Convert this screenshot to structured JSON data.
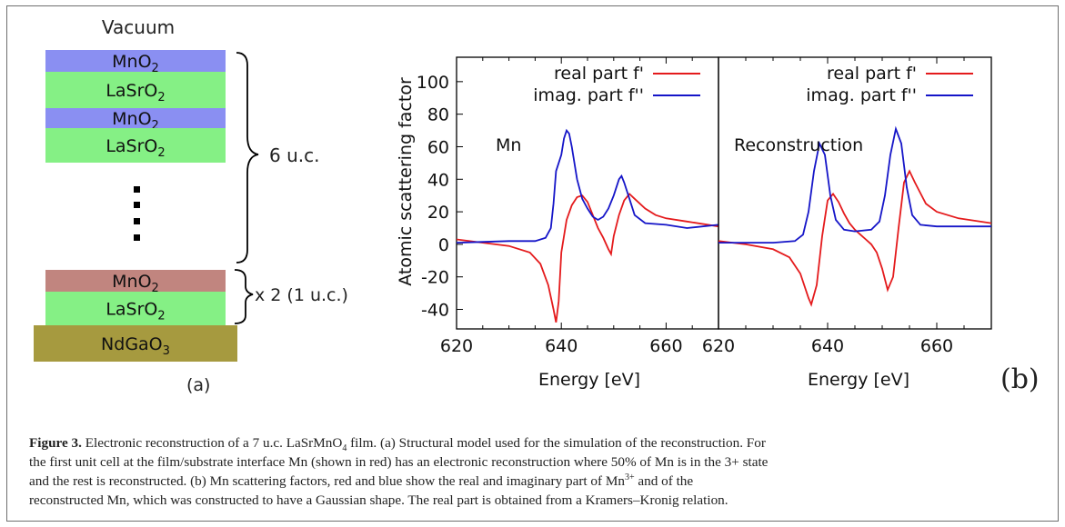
{
  "panel_a": {
    "vacuum_label": "Vacuum",
    "layers": [
      {
        "label": "MnO",
        "sub": "2",
        "color": "#8a8ff2"
      },
      {
        "label": "LaSrO",
        "sub": "2",
        "color": "#85f085"
      },
      {
        "label": "MnO",
        "sub": "2",
        "color": "#8a8ff2"
      },
      {
        "label": "LaSrO",
        "sub": "2",
        "color": "#85f085"
      }
    ],
    "bottom_layers": [
      {
        "label": "MnO",
        "sub": "2",
        "color": "#c1857f"
      },
      {
        "label": "LaSrO",
        "sub": "2",
        "color": "#85f085"
      }
    ],
    "substrate": {
      "label": "NdGaO",
      "sub": "3",
      "color": "#a69a3f"
    },
    "brace_top_label": "6 u.c.",
    "brace_bottom_label": "x 2 (1 u.c.)",
    "panel_label": "(a)"
  },
  "panel_b": {
    "panel_label": "(b)",
    "ylabel": "Atomic scattering factor",
    "xlabel": "Energy [eV]",
    "legend": {
      "real": "real part f'",
      "imag": "imag. part f''"
    },
    "colors": {
      "real": "#e41a1c",
      "imag": "#1515c8"
    }
  },
  "chart_data": [
    {
      "type": "line",
      "annotation": "Mn",
      "xlabel": "Energy [eV]",
      "ylabel": "Atomic scattering factor",
      "xlim": [
        620,
        670
      ],
      "ylim": [
        -52,
        115
      ],
      "xticks": [
        620,
        640,
        660
      ],
      "yticks": [
        -40,
        -20,
        0,
        20,
        40,
        60,
        80,
        100
      ],
      "series": [
        {
          "name": "real part f'",
          "color": "#e41a1c",
          "x": [
            620,
            625,
            630,
            634,
            636,
            637.5,
            638.5,
            639,
            639.5,
            640,
            641,
            642,
            643,
            644,
            645,
            646,
            647,
            648,
            649,
            649.5,
            650,
            651,
            652,
            653,
            654,
            656,
            658,
            660,
            664,
            670
          ],
          "y": [
            3,
            1,
            -1,
            -5,
            -12,
            -25,
            -40,
            -48,
            -35,
            -5,
            15,
            24,
            29,
            30,
            26,
            18,
            10,
            4,
            -3,
            -6,
            5,
            18,
            27,
            31,
            28,
            22,
            18,
            16,
            14,
            11
          ]
        },
        {
          "name": "imag. part f''",
          "color": "#1515c8",
          "x": [
            620,
            630,
            635,
            637,
            638,
            638.5,
            639,
            640,
            640.5,
            641,
            641.5,
            642,
            643,
            644,
            645,
            646,
            647,
            648,
            649,
            650,
            651,
            651.5,
            652,
            653,
            654,
            656,
            660,
            664,
            670
          ],
          "y": [
            1,
            2,
            2,
            4,
            10,
            25,
            45,
            55,
            65,
            70,
            68,
            60,
            40,
            28,
            22,
            17,
            15,
            17,
            22,
            30,
            40,
            42,
            38,
            28,
            18,
            13,
            12,
            10,
            12
          ]
        }
      ]
    },
    {
      "type": "line",
      "annotation": "Reconstruction",
      "xlabel": "Energy [eV]",
      "xlim": [
        620,
        670
      ],
      "ylim": [
        -52,
        115
      ],
      "xticks": [
        620,
        640,
        660
      ],
      "series": [
        {
          "name": "real part f'",
          "color": "#e41a1c",
          "x": [
            620,
            625,
            630,
            633,
            635,
            636.5,
            637,
            638,
            639,
            640,
            641,
            642,
            643,
            644,
            645,
            646,
            647,
            648,
            649,
            650,
            651,
            652,
            653,
            654,
            655,
            656,
            658,
            660,
            664,
            670
          ],
          "y": [
            2,
            0,
            -3,
            -8,
            -18,
            -33,
            -37,
            -25,
            5,
            27,
            31,
            26,
            19,
            13,
            9,
            6,
            3,
            0,
            -5,
            -15,
            -28,
            -20,
            10,
            38,
            45,
            38,
            25,
            20,
            16,
            13
          ]
        },
        {
          "name": "imag. part f''",
          "color": "#1515c8",
          "x": [
            620,
            630,
            634,
            635.5,
            636.5,
            637.5,
            638.5,
            639.5,
            640.5,
            641.5,
            643,
            645,
            648,
            649.5,
            650.5,
            651.5,
            652.5,
            653.5,
            654.5,
            655.5,
            657,
            660,
            670
          ],
          "y": [
            1,
            1,
            2,
            6,
            20,
            45,
            62,
            55,
            30,
            15,
            9,
            8,
            9,
            14,
            30,
            55,
            71,
            62,
            35,
            18,
            12,
            11,
            11
          ]
        }
      ]
    }
  ],
  "caption": {
    "figure_label": "Figure 3.",
    "line1_pre": " Electronic reconstruction of a 7 u.c. LaSrMnO",
    "line1_sub": "4",
    "line1_post": " film. (a) Structural model used for the simulation of the reconstruction. For",
    "line2": "the first unit cell at the film/substrate interface Mn (shown in red) has an electronic reconstruction where 50% of Mn is in the 3+ state",
    "line3": "and the rest is reconstructed. (b) Mn scattering factors, red and blue show the real and imaginary part of Mn",
    "line3_sup": "3+",
    "line3_post": " and of the",
    "line4": "reconstructed Mn, which was constructed to have a Gaussian shape. The real part is obtained from a Kramers–Kronig relation."
  }
}
